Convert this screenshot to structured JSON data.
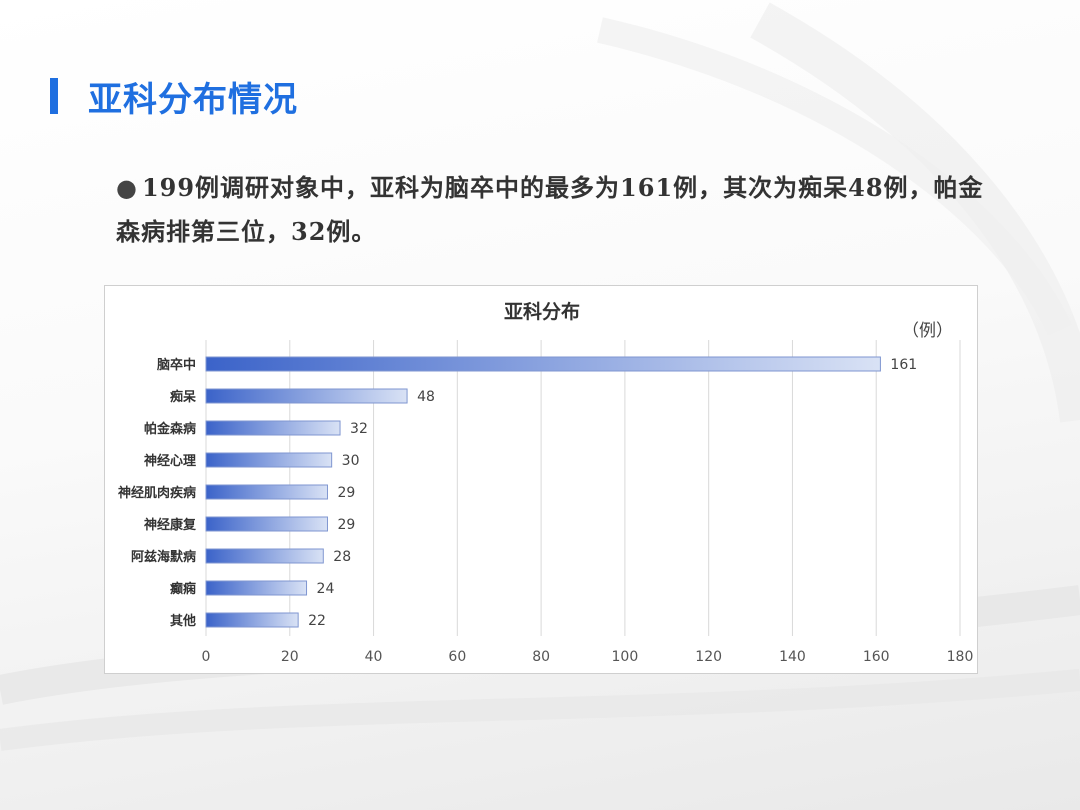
{
  "slide": {
    "title": "亚科分布情况",
    "bullet": "199例调研对象中，亚科为脑卒中的最多为161例，其次为痴呆48例，帕金森病排第三位，32例。"
  },
  "colors": {
    "accent": "#1f6fe0",
    "bar_start": "#3b63c9",
    "bar_end": "#d9e2f5"
  },
  "chart_data": {
    "type": "bar",
    "orientation": "horizontal",
    "title": "亚科分布",
    "unit_label": "（例）",
    "categories": [
      "脑卒中",
      "痴呆",
      "帕金森病",
      "神经心理",
      "神经肌肉疾病",
      "神经康复",
      "阿兹海默病",
      "癫痫",
      "其他"
    ],
    "values": [
      161,
      48,
      32,
      30,
      29,
      29,
      28,
      24,
      22
    ],
    "xlim": [
      0,
      180
    ],
    "xticks": [
      0,
      20,
      40,
      60,
      80,
      100,
      120,
      140,
      160,
      180
    ],
    "grid": true,
    "legend": "none"
  }
}
